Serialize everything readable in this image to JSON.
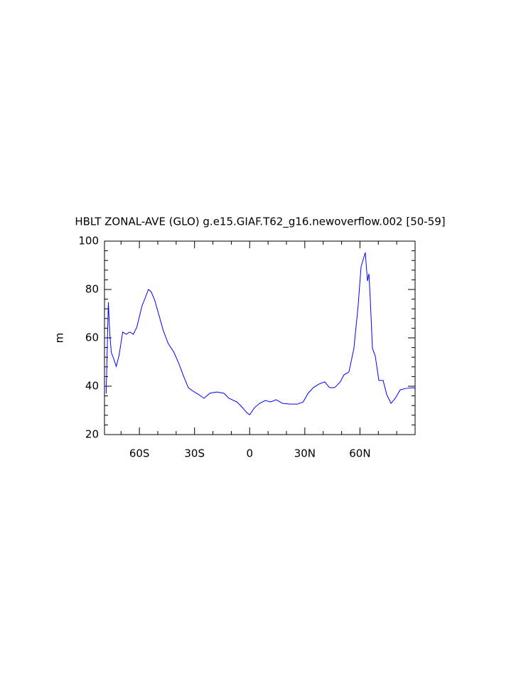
{
  "chart_data": {
    "type": "line",
    "title": "HBLT ZONAL-AVE (GLO) g.e15.GIAF.T62_g16.newoverflow.002 [50-59]",
    "y_label": "m",
    "xlim": [
      -79,
      90
    ],
    "ylim": [
      20,
      100
    ],
    "xticks": [
      {
        "value": -60,
        "label": "60S"
      },
      {
        "value": -30,
        "label": "30S"
      },
      0,
      {
        "value": 30,
        "label": "30N"
      },
      {
        "value": 60,
        "label": "60N"
      }
    ],
    "xminorticks": [
      -70,
      -50,
      -40,
      -20,
      -10,
      10,
      20,
      40,
      50,
      70,
      80,
      90
    ],
    "yticks": [
      20,
      40,
      60,
      80,
      100
    ],
    "yminorticks": [
      24,
      28,
      32,
      36,
      44,
      48,
      52,
      56,
      64,
      68,
      72,
      76,
      84,
      88,
      92,
      96
    ],
    "series": [
      {
        "color": "#0000ff",
        "x": [
          -78.1,
          -76.9,
          -76.1,
          -75.3,
          -74.2,
          -72.6,
          -71.1,
          -69.1,
          -67.2,
          -65.2,
          -63.3,
          -61.4,
          -58.6,
          -56.7,
          -55.1,
          -53.6,
          -51.7,
          -49.7,
          -47,
          -44.3,
          -41.2,
          -38.4,
          -36.1,
          -33.4,
          -30.7,
          -27.6,
          -24.9,
          -21.7,
          -17.9,
          -14,
          -11.3,
          -7,
          -4.3,
          -1.6,
          0,
          2.7,
          5.4,
          8.5,
          11.3,
          14.4,
          17.9,
          22.1,
          26,
          29.1,
          31.8,
          34.6,
          37.7,
          40.8,
          43.5,
          46.2,
          49.3,
          51.3,
          54,
          56.7,
          59,
          60.6,
          62.9,
          64.1,
          64.9,
          65.6,
          66.8,
          68.3,
          70.3,
          72.6,
          74.6,
          76.9,
          79.2,
          81.9,
          85,
          88.9,
          90
        ],
        "values": [
          37,
          74.7,
          61.5,
          54,
          51.8,
          48.2,
          52.6,
          62.4,
          61.5,
          62.4,
          61.5,
          64.4,
          73.2,
          76.8,
          80,
          79.1,
          75.6,
          70.3,
          63,
          57.6,
          54,
          49.1,
          44.4,
          39.4,
          37.9,
          36.5,
          35,
          37.1,
          37.6,
          37.1,
          35,
          33.5,
          31.5,
          29.1,
          28.2,
          31.2,
          32.9,
          34.1,
          33.5,
          34.4,
          32.9,
          32.6,
          32.6,
          33.5,
          37.1,
          39.4,
          40.9,
          41.8,
          39.4,
          39.4,
          41.8,
          44.7,
          45.9,
          55.6,
          73.2,
          89.4,
          95.3,
          83.5,
          86.5,
          76.2,
          55.6,
          52.6,
          42.4,
          42.4,
          36.5,
          32.9,
          35,
          38.5,
          39.1,
          39.4,
          39.1
        ]
      }
    ]
  }
}
